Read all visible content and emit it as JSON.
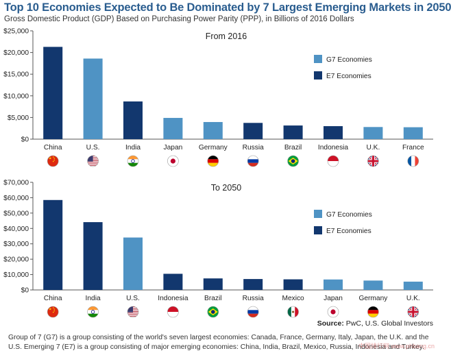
{
  "header": {
    "title": "Top 10 Economies Expected to Be Dominated by 7 Largest Emerging Markets in 2050",
    "subtitle": "Gross Domestic Product (GDP) Based on Purchasing Power Parity (PPP), in Billions of 2016 Dollars"
  },
  "colors": {
    "g7": "#4f93c4",
    "e7": "#12376e",
    "axis": "#555555"
  },
  "chart_data": [
    {
      "type": "bar",
      "title": "From 2016",
      "ylim": [
        0,
        25000
      ],
      "yticks": [
        "$0",
        "$5,000",
        "$10,000",
        "$15,000",
        "$20,000",
        "$25,000"
      ],
      "categories": [
        "China",
        "U.S.",
        "India",
        "Japan",
        "Germany",
        "Russia",
        "Brazil",
        "Indonesia",
        "U.K.",
        "France"
      ],
      "values": [
        21300,
        18600,
        8700,
        4900,
        3950,
        3750,
        3150,
        3000,
        2800,
        2750
      ],
      "groups": [
        "E7",
        "G7",
        "E7",
        "G7",
        "G7",
        "E7",
        "E7",
        "E7",
        "G7",
        "G7"
      ],
      "flags": [
        "china-flag-icon",
        "us-flag-icon",
        "india-flag-icon",
        "japan-flag-icon",
        "germany-flag-icon",
        "russia-flag-icon",
        "brazil-flag-icon",
        "indonesia-flag-icon",
        "uk-flag-icon",
        "france-flag-icon"
      ],
      "legend": [
        "G7 Economies",
        "E7 Economies"
      ]
    },
    {
      "type": "bar",
      "title": "To 2050",
      "ylim": [
        0,
        70000
      ],
      "yticks": [
        "$0",
        "$10,000",
        "$20,000",
        "$30,000",
        "$40,000",
        "$50,000",
        "$60,000",
        "$70,000"
      ],
      "categories": [
        "China",
        "India",
        "U.S.",
        "Indonesia",
        "Brazil",
        "Russia",
        "Mexico",
        "Japan",
        "Germany",
        "U.K."
      ],
      "values": [
        58500,
        44100,
        34100,
        10500,
        7500,
        7100,
        6900,
        6800,
        6100,
        5400
      ],
      "groups": [
        "E7",
        "E7",
        "G7",
        "E7",
        "E7",
        "E7",
        "E7",
        "G7",
        "G7",
        "G7"
      ],
      "flags": [
        "china-flag-icon",
        "india-flag-icon",
        "us-flag-icon",
        "indonesia-flag-icon",
        "brazil-flag-icon",
        "russia-flag-icon",
        "mexico-flag-icon",
        "japan-flag-icon",
        "germany-flag-icon",
        "uk-flag-icon"
      ],
      "legend": [
        "G7 Economies",
        "E7 Economies"
      ]
    }
  ],
  "source": {
    "label": "Source:",
    "text": "PwC, U.S. Global Investors"
  },
  "footnotes": [
    "Group of 7 (G7) is a group consisting of the world's seven largest economies: Canada, France, Germany, Italy, Japan, the U.K. and the",
    "U.S. Emerging 7 (E7) is a group consisting of major emerging economies: China, India, Brazil, Mexico, Russia, Indonesia and Turkey."
  ],
  "watermark": "中国排行网 www.phbang.cn"
}
